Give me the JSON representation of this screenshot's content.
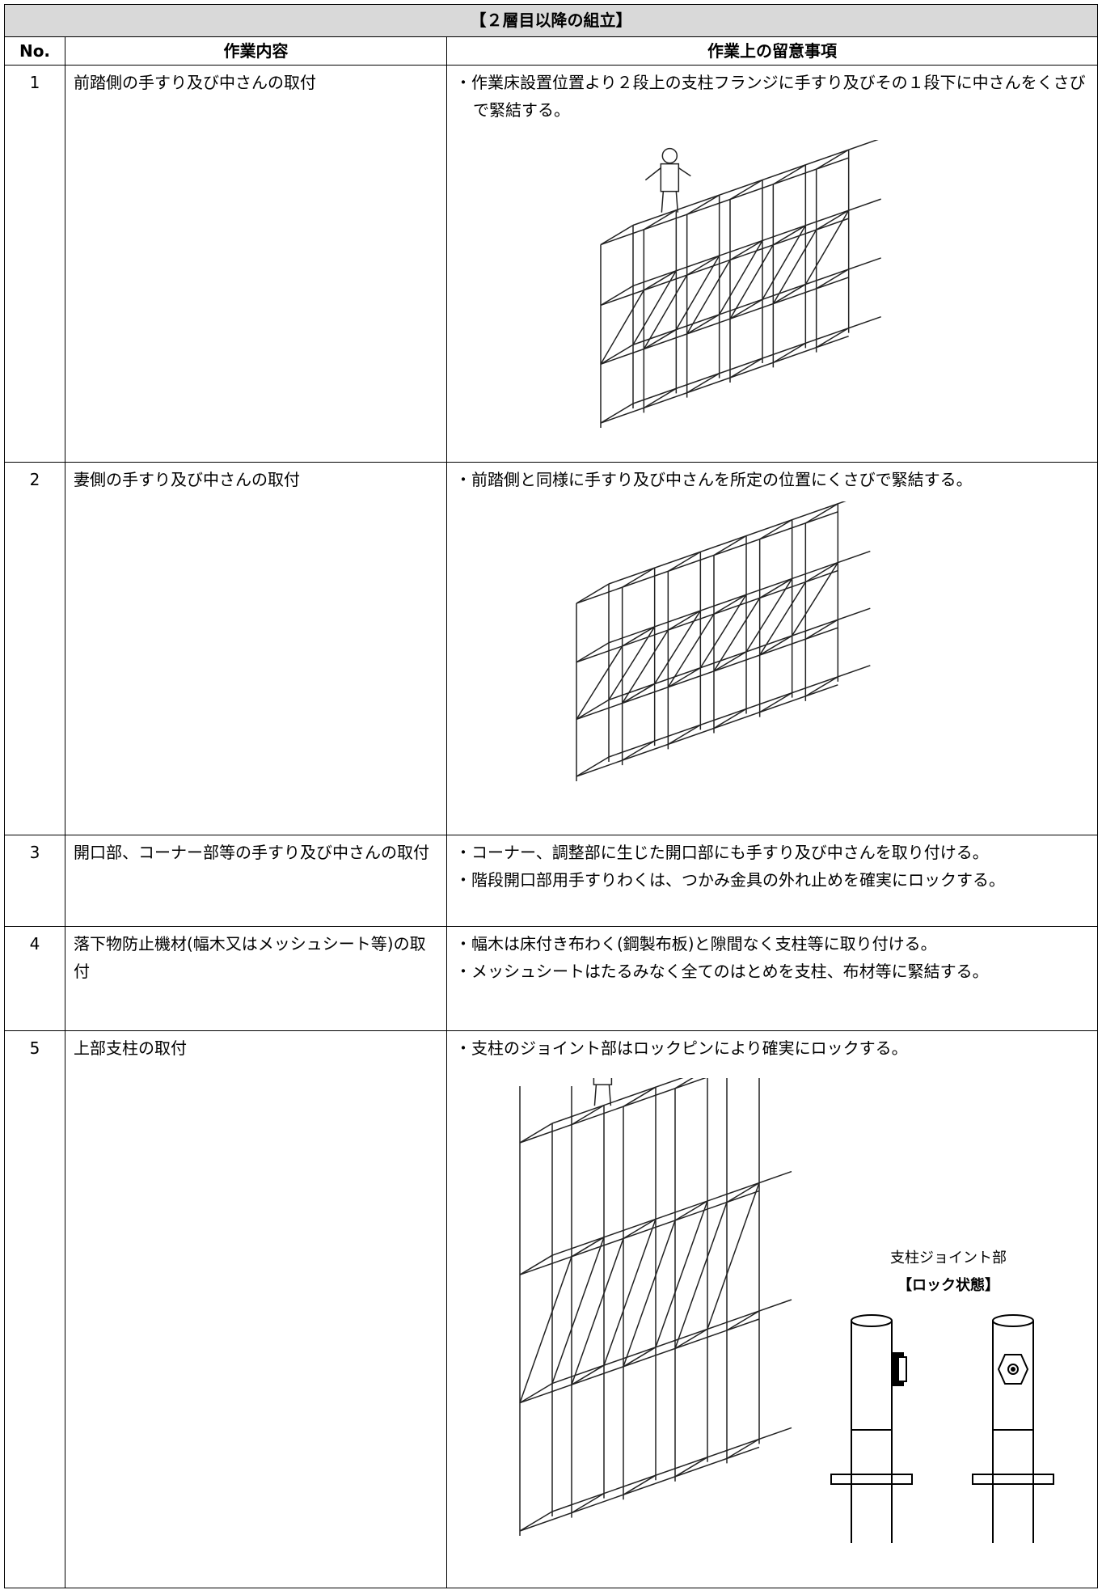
{
  "table": {
    "title": "【２層目以降の組立】",
    "headers": [
      "No.",
      "作業内容",
      "作業上の留意事項"
    ],
    "rows": [
      {
        "no": "1",
        "task": "前踏側の手すり及び中さんの取付",
        "notes": [
          "・作業床設置位置より２段上の支柱フランジに手すり及びその１段下に中さんをくさびで緊結する。"
        ]
      },
      {
        "no": "2",
        "task": "妻側の手すり及び中さんの取付",
        "notes": [
          "・前踏側と同様に手すり及び中さんを所定の位置にくさびで緊結する。"
        ]
      },
      {
        "no": "3",
        "task": "開口部、コーナー部等の手すり及び中さんの取付",
        "notes": [
          "・コーナー、調整部に生じた開口部にも手すり及び中さんを取り付ける。",
          "・階段開口部用手すりわくは、つかみ金具の外れ止めを確実にロックする。"
        ]
      },
      {
        "no": "4",
        "task": "落下物防止機材(幅木又はメッシュシート等)の取付",
        "notes": [
          "・幅木は床付き布わく(鋼製布板)と隙間なく支柱等に取り付ける。",
          "・メッシュシートはたるみなく全てのはとめを支柱、布材等に緊結する。"
        ]
      },
      {
        "no": "5",
        "task": "上部支柱の取付",
        "notes": [
          "・支柱のジョイント部はロックピンにより確実にロックする。"
        ],
        "figure": {
          "caption": "支柱ジョイント部",
          "state": "【ロック状態】"
        }
      }
    ]
  }
}
